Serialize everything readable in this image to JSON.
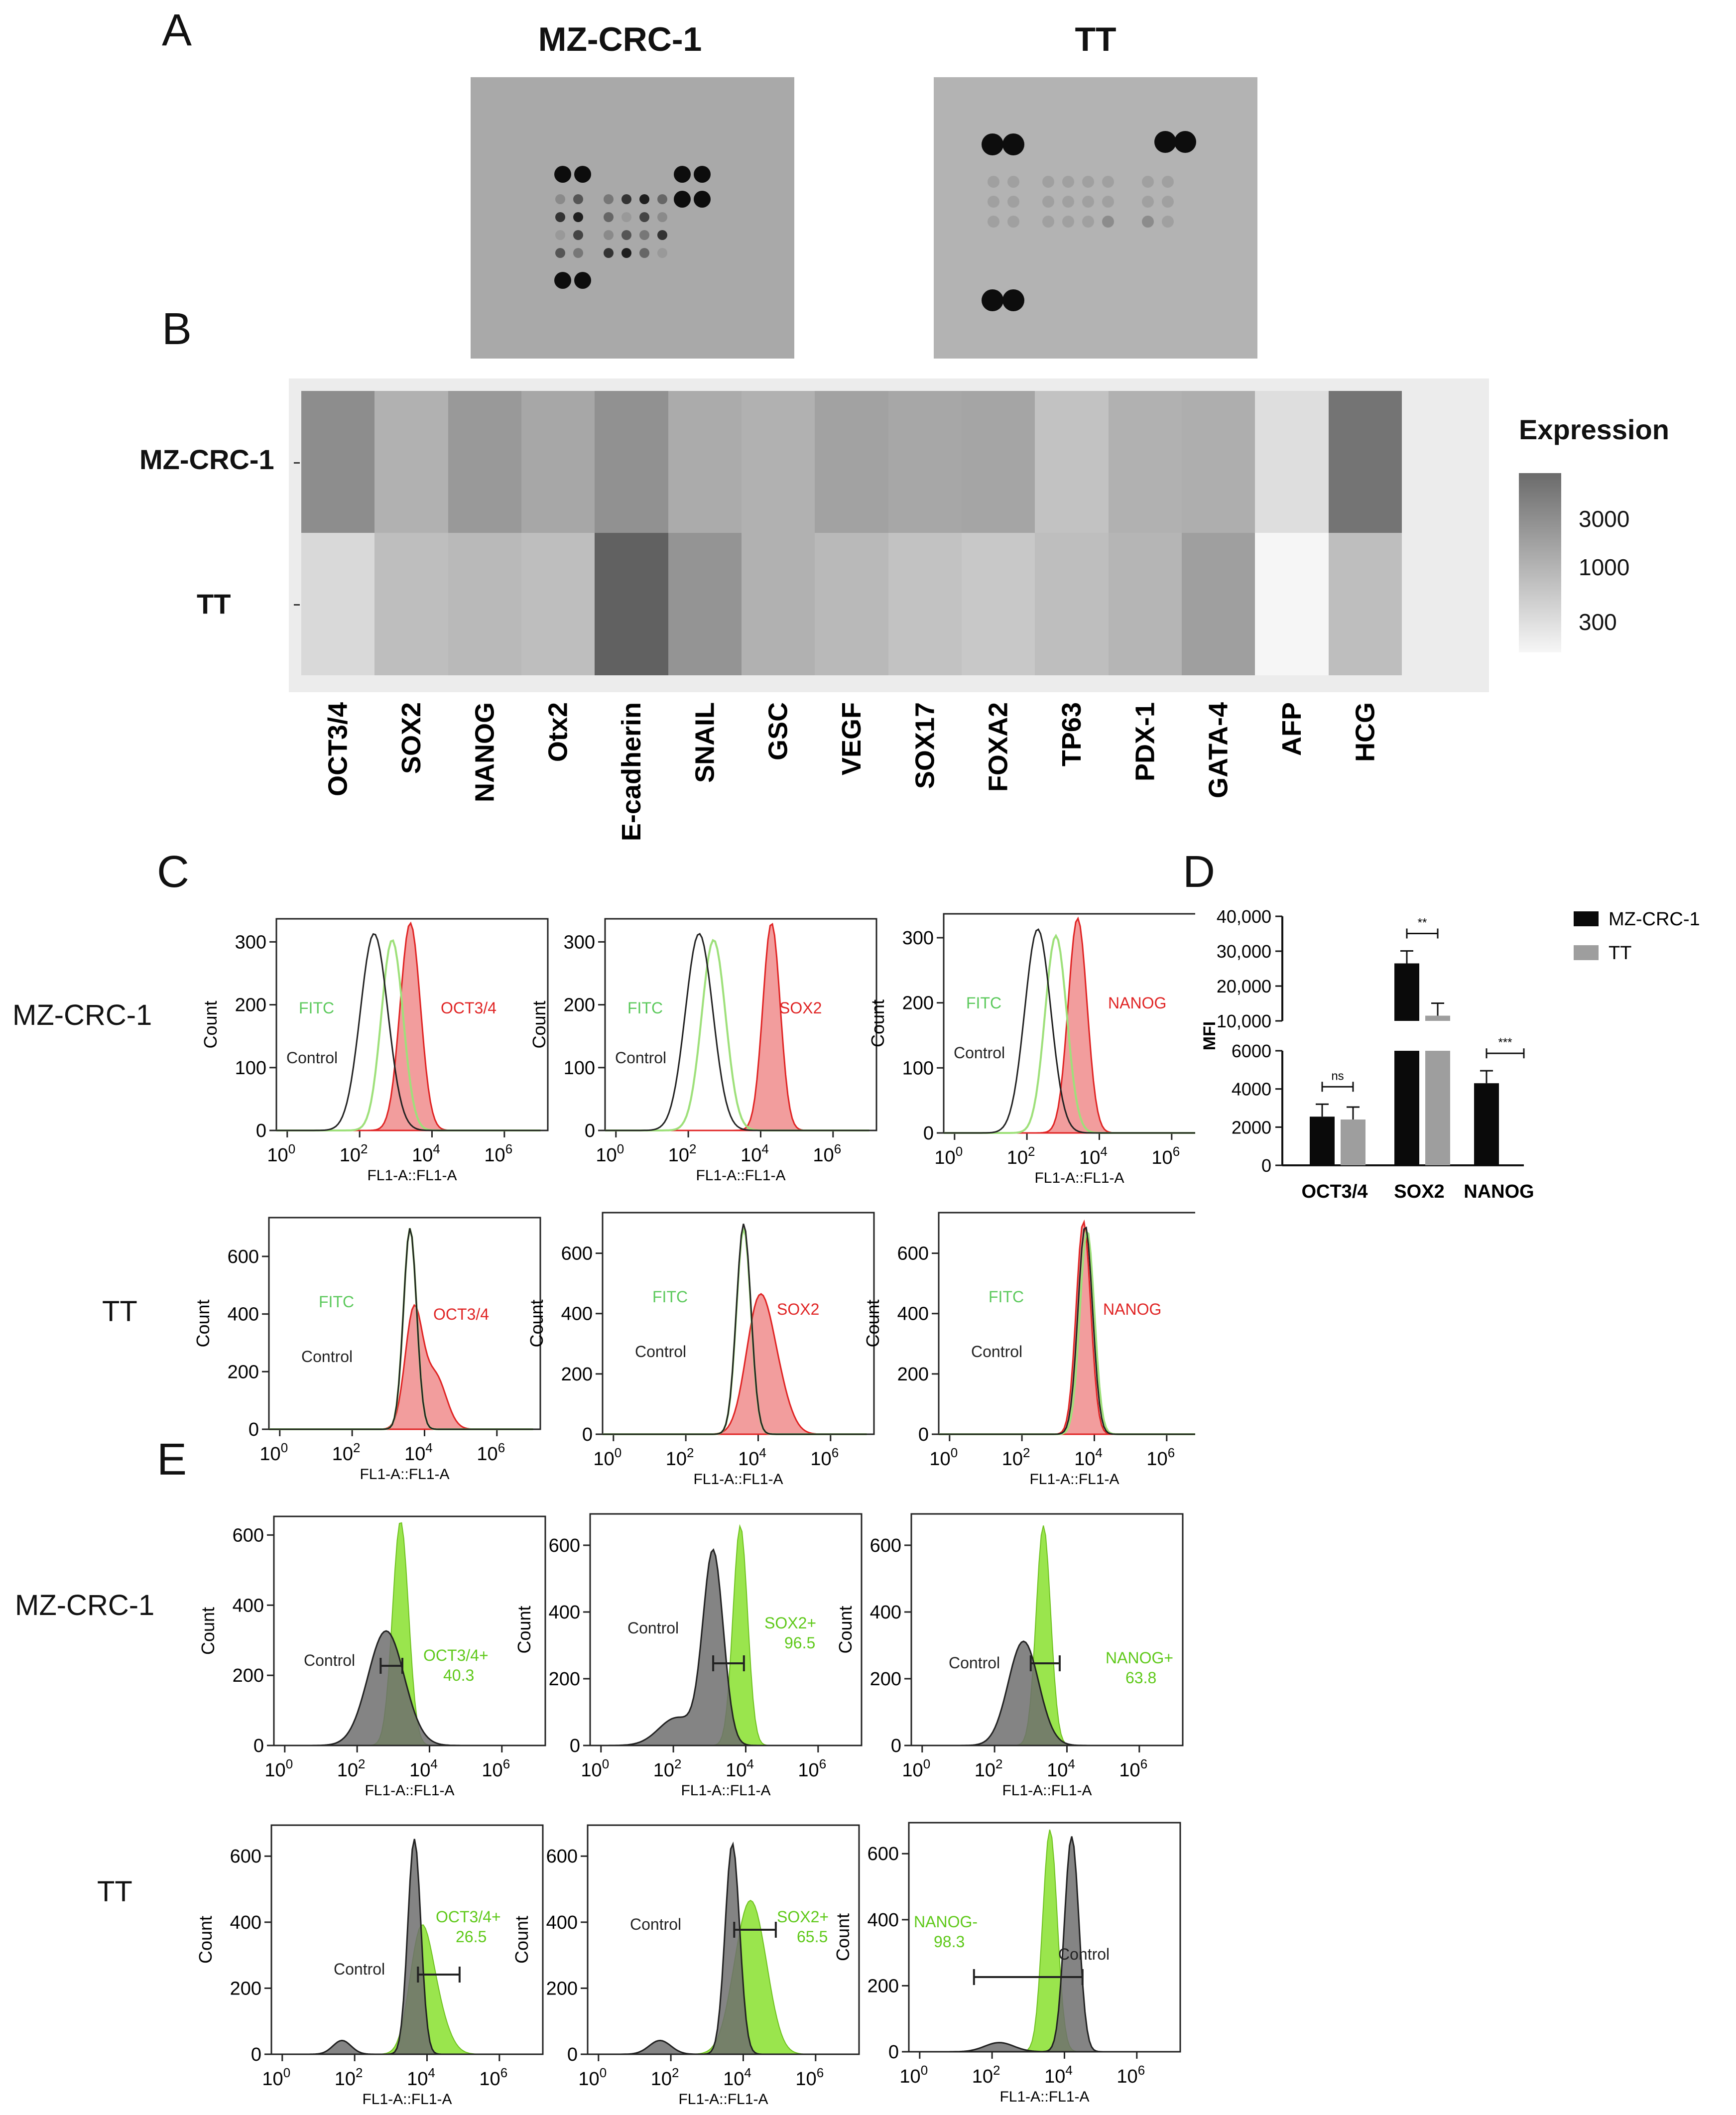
{
  "panels": {
    "a": "A",
    "b": "B",
    "c": "C",
    "d": "D",
    "e": "E"
  },
  "panel_a": {
    "titles": [
      "MZ-CRC-1",
      "TT"
    ]
  },
  "panel_b": {
    "rows": [
      "MZ-CRC-1",
      "TT"
    ],
    "legend_title": "Expression",
    "legend_ticks": [
      "3000",
      "1000",
      "300"
    ],
    "colors": {
      "low": "#f6f6f6",
      "high": "#5c5c5c"
    }
  },
  "panel_c": {
    "rows": [
      "MZ-CRC-1",
      "TT"
    ],
    "fitc_label": "FITC",
    "control_label": "Control",
    "y_axis_label": "Count",
    "x_axis_label": "FL1-A::FL1-A",
    "markers": [
      "OCT3/4",
      "SOX2",
      "NANOG"
    ],
    "colors": {
      "fitc": "#5cc95c",
      "marker": "#e02424",
      "control": "#222222"
    }
  },
  "panel_e": {
    "rows": [
      "MZ-CRC-1",
      "TT"
    ],
    "control_label": "Control",
    "y_axis_label": "Count",
    "x_axis_label": "FL1-A::FL1-A",
    "gates": [
      {
        "label": "OCT3/4+",
        "value": "40.3"
      },
      {
        "label": "SOX2+",
        "value": "96.5"
      },
      {
        "label": "NANOG+",
        "value": "63.8"
      },
      {
        "label": "OCT3/4+",
        "value": "26.5"
      },
      {
        "label": "SOX2+",
        "value": "65.5"
      },
      {
        "label": "NANOG-",
        "value": "98.3"
      }
    ],
    "colors": {
      "green": "#8fe23a",
      "gray": "#6e6e6e"
    }
  },
  "chart_data": [
    {
      "type": "heatmap",
      "title": "",
      "legend_title": "Expression",
      "rows": [
        "MZ-CRC-1",
        "TT"
      ],
      "columns": [
        "OCT3/4",
        "SOX2",
        "NANOG",
        "Otx2",
        "E-cadherin",
        "SNAIL",
        "GSC",
        "VEGF",
        "SOX17",
        "FOXA2",
        "TP63",
        "PDX-1",
        "GATA-4",
        "AFP",
        "HCG"
      ],
      "values": [
        [
          1400,
          650,
          1100,
          800,
          1300,
          750,
          650,
          900,
          800,
          850,
          450,
          650,
          700,
          250,
          2400
        ],
        [
          280,
          500,
          550,
          500,
          3600,
          1200,
          650,
          550,
          450,
          400,
          500,
          600,
          950,
          150,
          500
        ]
      ],
      "color_scale_ticks": [
        3000,
        1000,
        300
      ]
    },
    {
      "type": "bar",
      "title": "",
      "categories": [
        "OCT3/4",
        "SOX2",
        "NANOG"
      ],
      "series": [
        {
          "name": "MZ-CRC-1",
          "values": [
            2550,
            26500,
            4300
          ]
        },
        {
          "name": "TT",
          "values": [
            2400,
            11500,
            0
          ]
        }
      ],
      "xlabel": "",
      "ylabel": "MFI",
      "y_ticks_lower": [
        "0",
        "2000",
        "4000",
        "6000"
      ],
      "y_ticks_upper": [
        "10,000",
        "20,000",
        "30,000",
        "40,000"
      ],
      "significance": [
        "ns",
        "**",
        "***"
      ]
    }
  ]
}
